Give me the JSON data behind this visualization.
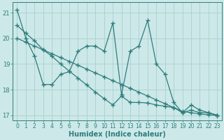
{
  "xlabel": "Humidex (Indice chaleur)",
  "bg_color": "#cde8e8",
  "line_color": "#2e7d7d",
  "grid_color": "#aacfcf",
  "line1_x": [
    0,
    1,
    2,
    3,
    4,
    5,
    6,
    7,
    8,
    9,
    10,
    11,
    12,
    13,
    14,
    15,
    16,
    17,
    18,
    19,
    20,
    21,
    22,
    23
  ],
  "line1_y": [
    21.1,
    20.0,
    19.3,
    18.2,
    18.2,
    18.6,
    18.7,
    19.5,
    19.7,
    19.7,
    19.5,
    20.6,
    17.8,
    19.5,
    19.7,
    20.7,
    19.0,
    18.6,
    17.5,
    17.1,
    17.4,
    17.2,
    17.1,
    17.0
  ],
  "line2_x": [
    0,
    1,
    2,
    3,
    4,
    5,
    6,
    7,
    8,
    9,
    10,
    11,
    12,
    13,
    14,
    15,
    16,
    17,
    18,
    19,
    20,
    21,
    22,
    23
  ],
  "line2_y": [
    20.5,
    20.2,
    19.9,
    19.55,
    19.3,
    19.0,
    18.72,
    18.45,
    18.18,
    17.9,
    17.65,
    17.4,
    17.75,
    17.5,
    17.5,
    17.48,
    17.4,
    17.35,
    17.3,
    17.1,
    17.2,
    17.1,
    17.1,
    17.0
  ],
  "line3_x": [
    0,
    1,
    2,
    3,
    4,
    5,
    6,
    7,
    8,
    9,
    10,
    11,
    12,
    13,
    14,
    15,
    16,
    17,
    18,
    19,
    20,
    21,
    22,
    23
  ],
  "line3_y": [
    20.0,
    19.85,
    19.7,
    19.55,
    19.4,
    19.25,
    19.1,
    18.95,
    18.8,
    18.65,
    18.5,
    18.35,
    18.2,
    18.05,
    17.9,
    17.75,
    17.6,
    17.45,
    17.3,
    17.15,
    17.1,
    17.05,
    17.02,
    17.0
  ],
  "ytick_values": [
    17,
    18,
    19,
    20,
    21
  ],
  "xlim": [
    -0.5,
    23.5
  ],
  "ylim": [
    16.8,
    21.4
  ]
}
